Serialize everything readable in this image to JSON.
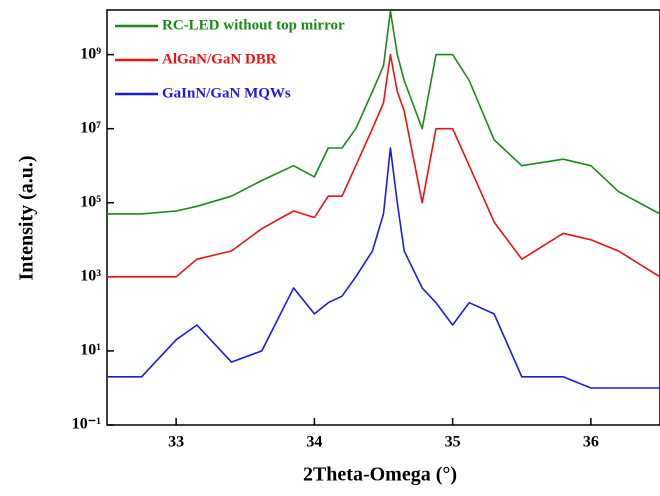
{
  "chart_data": {
    "type": "line",
    "x_label": "2Theta-Omega (°)",
    "y_label": "Intensity (a.u.)",
    "x": [
      32.5,
      32.75,
      33.0,
      33.15,
      33.4,
      33.62,
      33.85,
      34.0,
      34.1,
      34.2,
      34.3,
      34.42,
      34.5,
      34.55,
      34.6,
      34.65,
      34.78,
      34.88,
      35.0,
      35.12,
      35.3,
      35.5,
      35.8,
      36.0,
      36.2,
      36.5
    ],
    "series": [
      {
        "name": "RC-LED without top mirror",
        "color": "#1a8a1a",
        "values": [
          50000,
          50000,
          60000,
          80000,
          150000,
          400000,
          1000000,
          500000,
          3000000,
          3000000,
          10000000,
          100000000,
          500000000,
          15000000000,
          1000000000,
          200000000,
          10000000,
          1000000000,
          1000000000,
          200000000,
          5000000,
          1000000,
          1500000,
          1000000,
          200000,
          50000
        ]
      },
      {
        "name": "AlGaN/GaN DBR",
        "color": "#ee1111",
        "values": [
          1000,
          1000,
          1000,
          3000,
          5000,
          20000,
          60000,
          40000,
          150000,
          150000,
          1000000,
          10000000,
          50000000,
          1000000000,
          100000000,
          30000000,
          100000,
          10000000,
          10000000,
          1000000,
          30000,
          3000,
          15000,
          10000,
          5000,
          1000
        ]
      },
      {
        "name": "GaInN/GaN MQWs",
        "color": "#1a1aee",
        "values": [
          2,
          2,
          20,
          50,
          5,
          10,
          500,
          100,
          200,
          300,
          1000,
          5000,
          50000,
          3000000,
          100000,
          5000,
          500,
          200,
          50,
          200,
          100,
          2,
          2,
          1,
          1,
          1
        ]
      }
    ],
    "xlim": [
      32.5,
      36.5
    ],
    "xticks": [
      33,
      34,
      35,
      36
    ],
    "ylim": [
      0.1,
      16000000000
    ],
    "log_y": true,
    "yticks": [
      {
        "value": 0.1,
        "label": "10⁻¹"
      },
      {
        "value": 10,
        "label": "10¹"
      },
      {
        "value": 1000,
        "label": "10³"
      },
      {
        "value": 100000,
        "label": "10⁵"
      },
      {
        "value": 10000000,
        "label": "10⁷"
      },
      {
        "value": 1000000000,
        "label": "10⁹"
      }
    ]
  }
}
